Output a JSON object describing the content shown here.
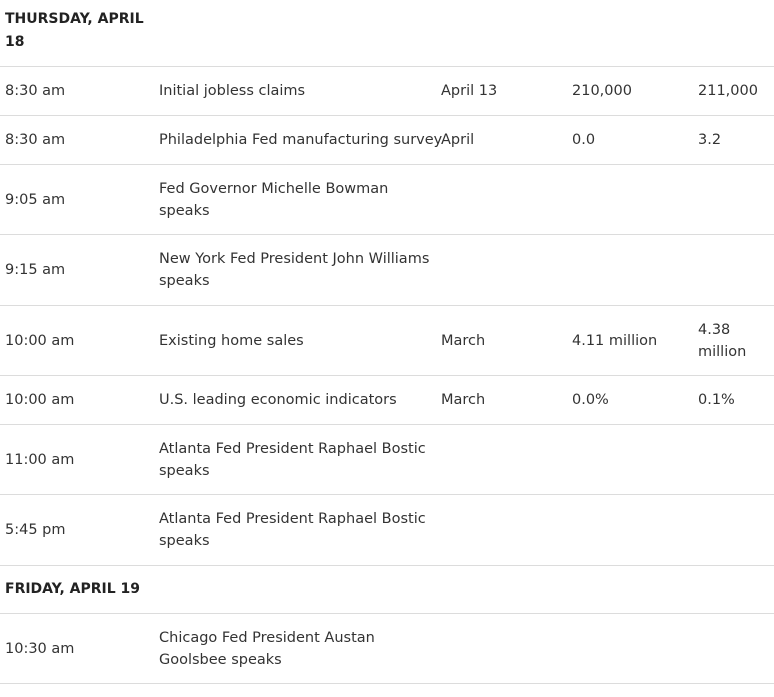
{
  "days": [
    {
      "header": "THURSDAY, APRIL 18",
      "rows": [
        {
          "time": "8:30 am",
          "event": "Initial jobless claims",
          "period": "April 13",
          "forecast": "210,000",
          "previous": "211,000"
        },
        {
          "time": "8:30 am",
          "event": "Philadelphia Fed manufacturing survey",
          "period": "April",
          "forecast": "0.0",
          "previous": "3.2"
        },
        {
          "time": "9:05 am",
          "event": "Fed Governor Michelle Bowman speaks",
          "period": "",
          "forecast": "",
          "previous": ""
        },
        {
          "time": "9:15 am",
          "event": "New York Fed President John Williams speaks",
          "period": "",
          "forecast": "",
          "previous": ""
        },
        {
          "time": "10:00 am",
          "event": "Existing home sales",
          "period": "March",
          "forecast": "4.11 million",
          "previous": "4.38 million"
        },
        {
          "time": "10:00 am",
          "event": "U.S. leading economic indicators",
          "period": "March",
          "forecast": "0.0%",
          "previous": "0.1%"
        },
        {
          "time": "11:00 am",
          "event": "Atlanta Fed President Raphael Bostic speaks",
          "period": "",
          "forecast": "",
          "previous": ""
        },
        {
          "time": "5:45 pm",
          "event": "Atlanta Fed President Raphael Bostic speaks",
          "period": "",
          "forecast": "",
          "previous": ""
        }
      ]
    },
    {
      "header": "FRIDAY, APRIL 19",
      "rows": [
        {
          "time": "10:30 am",
          "event": "Chicago Fed President Austan Goolsbee speaks",
          "period": "",
          "forecast": "",
          "previous": ""
        }
      ]
    }
  ]
}
